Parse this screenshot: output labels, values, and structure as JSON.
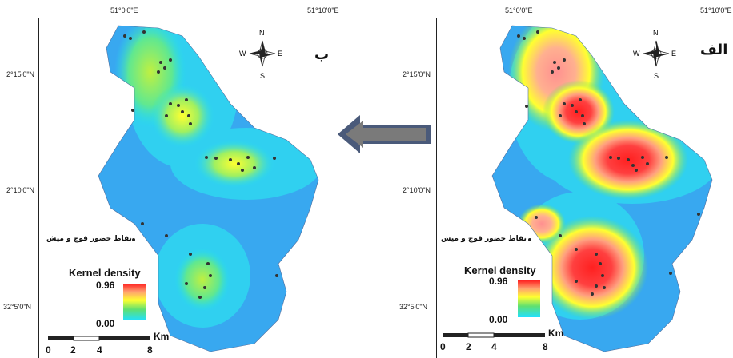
{
  "left_panel": {
    "letter": "ب",
    "lon_labels": [
      "51°0'0\"E",
      "51°10'0\"E"
    ],
    "lat_labels": [
      "2°15'0\"N",
      "2°10'0\"N",
      "32°5'0\"N"
    ],
    "legend": {
      "title": "Kernel density",
      "max": "0.96",
      "min": "0.00"
    },
    "presence_label": "نقاط حضور قوچ و میش",
    "scale": {
      "unit": "Km",
      "ticks": [
        "0",
        "2",
        "4",
        "8"
      ]
    },
    "north_arrow": {
      "n": "N",
      "s": "S",
      "e": "E",
      "w": "W"
    }
  },
  "right_panel": {
    "letter": "الف",
    "lon_labels": [
      "51°0'0\"E",
      "51°10'0\"E"
    ],
    "lat_labels": [
      "2°15'0\"N",
      "2°10'0\"N",
      "32°5'0\"N"
    ],
    "legend": {
      "title": "Kernel density",
      "max": "0.96",
      "min": "0.00"
    },
    "presence_label": "نقاط حضور قوچ و میش",
    "scale": {
      "unit": "Km",
      "ticks": [
        "0",
        "2",
        "4",
        "8"
      ]
    },
    "north_arrow": {
      "n": "N",
      "s": "S",
      "e": "E",
      "w": "W"
    }
  },
  "colors": {
    "low": "#20c8f0",
    "mid": "#ffff30",
    "high": "#ff2020",
    "arrow": "#4a5a7a"
  }
}
